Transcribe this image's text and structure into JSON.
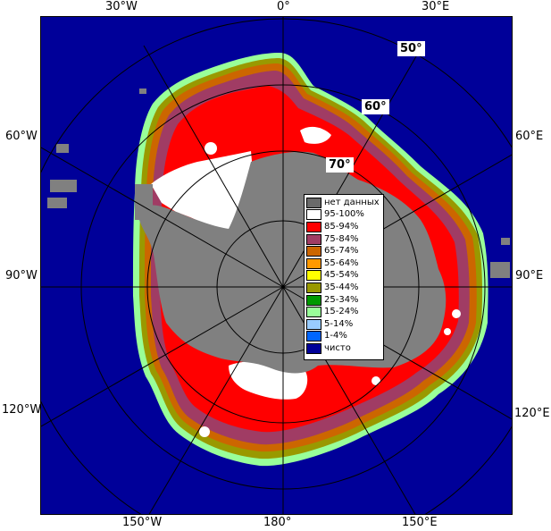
{
  "map": {
    "edge_labels": {
      "top_30w": "30°W",
      "top_0": "0°",
      "top_30e": "30°E",
      "left_60w": "60°W",
      "left_90w": "90°W",
      "left_120w": "120°W",
      "right_60e": "60°E",
      "right_90e": "90°E",
      "right_120e": "120°E",
      "bottom_150w": "150°W",
      "bottom_180": "180°",
      "bottom_150e": "150°E"
    },
    "lat_labels": {
      "lat50": "50°",
      "lat60": "60°",
      "lat70": "70°"
    }
  },
  "legend": {
    "items": [
      {
        "label": "нет данных",
        "color": "#6a6a6a"
      },
      {
        "label": "95-100%",
        "color": "#ffffff"
      },
      {
        "label": "85-94%",
        "color": "#ff0000"
      },
      {
        "label": "75-84%",
        "color": "#a03c64"
      },
      {
        "label": "65-74%",
        "color": "#cc6600"
      },
      {
        "label": "55-64%",
        "color": "#ff9900"
      },
      {
        "label": "45-54%",
        "color": "#ffff00"
      },
      {
        "label": "35-44%",
        "color": "#999900"
      },
      {
        "label": "25-34%",
        "color": "#009900"
      },
      {
        "label": "15-24%",
        "color": "#99ff99"
      },
      {
        "label": "5-14%",
        "color": "#99ccff"
      },
      {
        "label": "1-4%",
        "color": "#0066ff"
      },
      {
        "label": "чисто",
        "color": "#000099"
      }
    ]
  },
  "colors": {
    "ocean": "#000099",
    "land": "#808080",
    "grid": "#000000",
    "ice_full": "#ff0000"
  }
}
